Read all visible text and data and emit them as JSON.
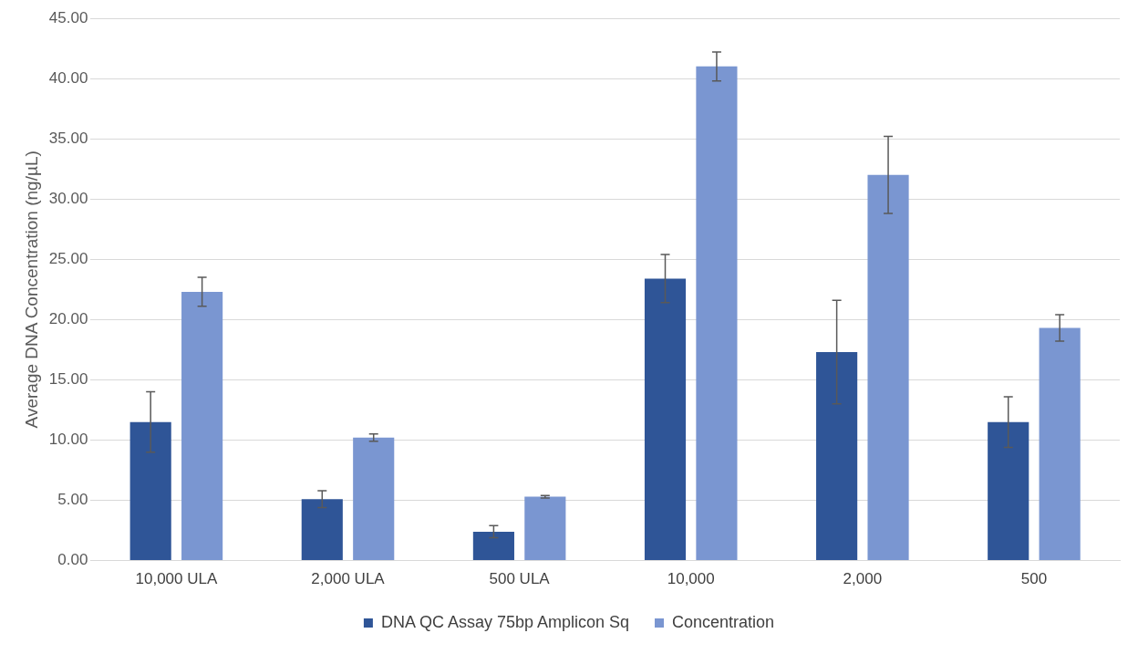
{
  "chart_data": {
    "type": "bar",
    "ylabel": "Average DNA Concentration (ng/µL)",
    "categories": [
      "10,000 ULA",
      "2,000 ULA",
      "500 ULA",
      "10,000",
      "2,000",
      "500"
    ],
    "series": [
      {
        "name": "DNA QC Assay 75bp Amplicon Sq",
        "color": "#2f5597",
        "values": [
          11.5,
          5.1,
          2.4,
          23.4,
          17.3,
          11.5
        ],
        "errors": [
          2.5,
          0.7,
          0.5,
          2.0,
          4.3,
          2.1
        ]
      },
      {
        "name": "Concentration",
        "color": "#7a96d1",
        "values": [
          22.3,
          10.2,
          5.3,
          41.0,
          32.0,
          19.3
        ],
        "errors": [
          1.2,
          0.3,
          0.1,
          1.2,
          3.2,
          1.1
        ]
      }
    ],
    "ylim": [
      0,
      45
    ],
    "yticks": [
      {
        "value": 0,
        "label": "0.00"
      },
      {
        "value": 5,
        "label": "5.00"
      },
      {
        "value": 10,
        "label": "10.00"
      },
      {
        "value": 15,
        "label": "15.00"
      },
      {
        "value": 20,
        "label": "20.00"
      },
      {
        "value": 25,
        "label": "25.00"
      },
      {
        "value": 30,
        "label": "30.00"
      },
      {
        "value": 35,
        "label": "35.00"
      },
      {
        "value": 40,
        "label": "40.00"
      },
      {
        "value": 45,
        "label": "45.00"
      }
    ],
    "grid": "y",
    "legend": "bottom"
  }
}
